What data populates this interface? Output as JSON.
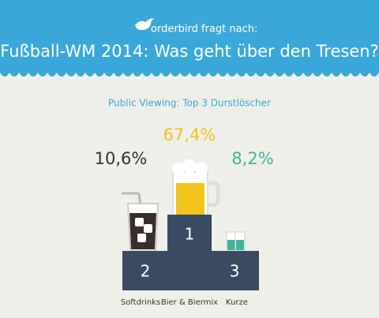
{
  "header": {
    "brand": "orderbird fragt nach:",
    "title": "Fußball-WM 2014: Was geht über den Tresen?"
  },
  "subtitle": "Public Viewing: Top 3 Durstlöscher",
  "items": [
    {
      "label": "Softdrinks",
      "value_label": "10,6%",
      "rank": "2"
    },
    {
      "label": "Bier & Biermix",
      "value_label": "67,4%",
      "rank": "1"
    },
    {
      "label": "Kurze",
      "value_label": "8,2%",
      "rank": "3"
    }
  ]
}
